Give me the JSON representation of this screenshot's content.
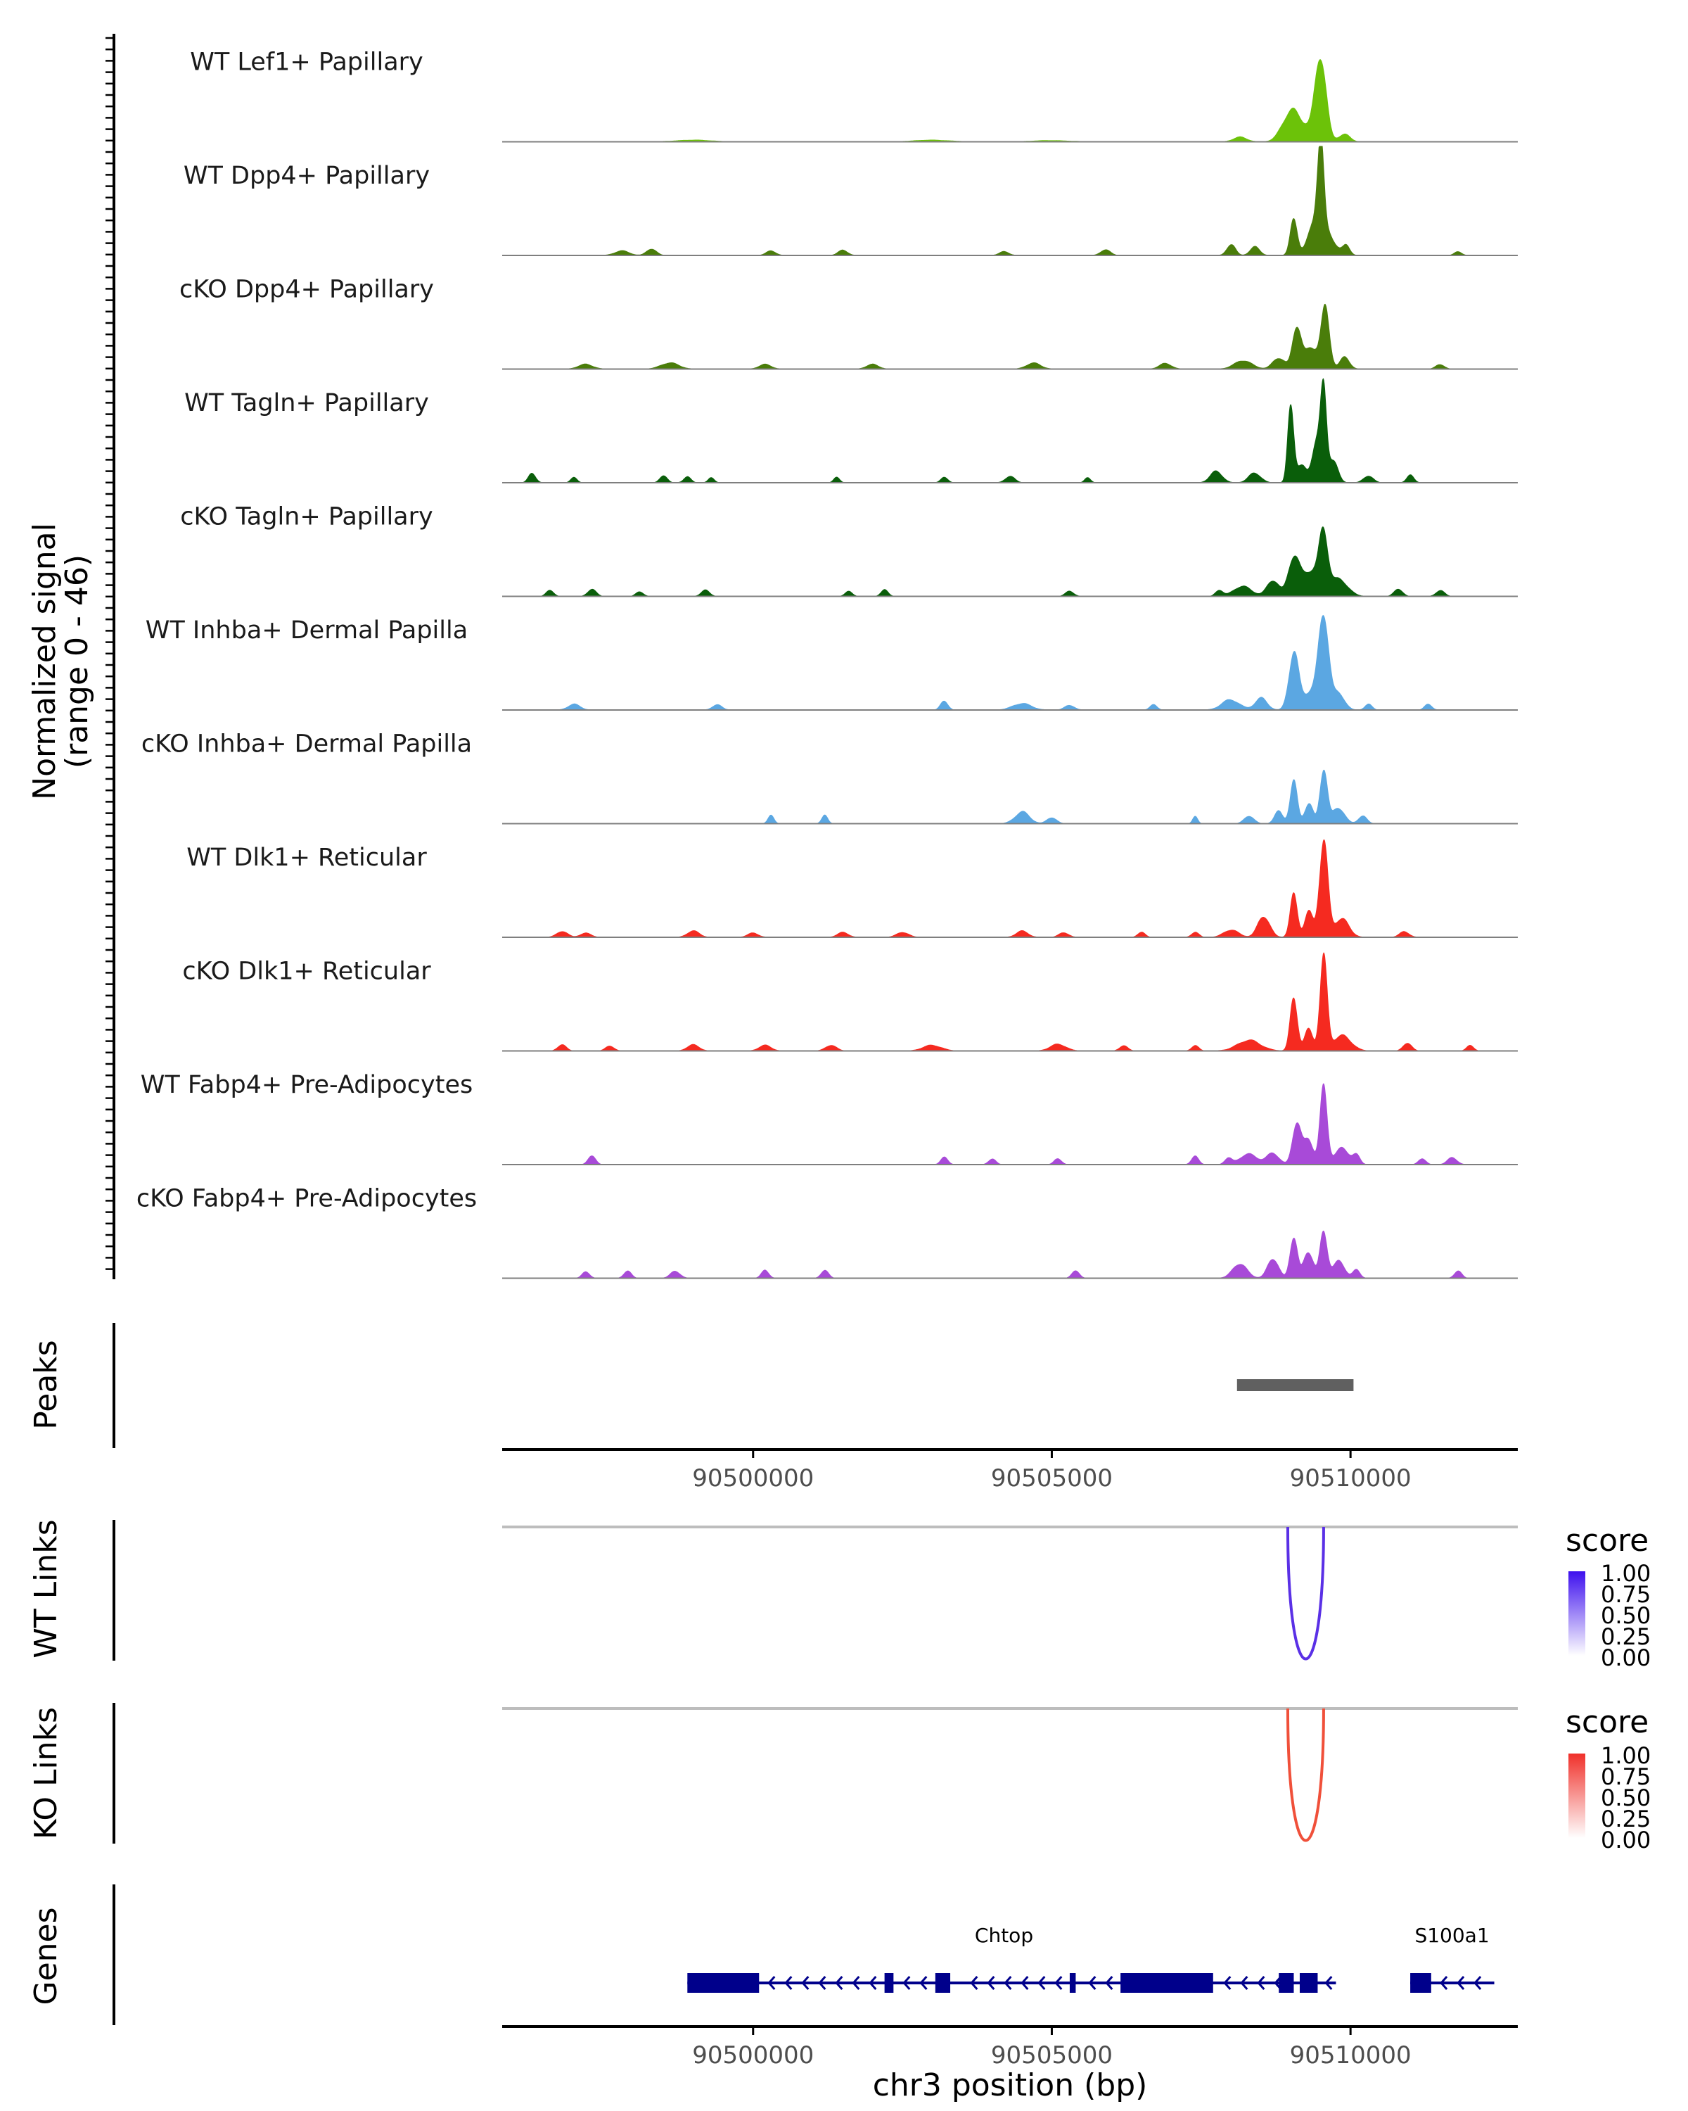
{
  "chart_data": {
    "type": "area",
    "region": "chr3",
    "x_range": [
      90495800,
      90512800
    ],
    "y_axis_label": "Normalized signal",
    "y_axis_range_label": "(range 0 - 46)",
    "y_range": [
      0,
      46
    ],
    "tracks": [
      {
        "name": "WT Lef1+ Papillary",
        "color": "#6cc209",
        "base": 1.2,
        "peaks": [
          [
            90508150,
            110,
            2.5
          ],
          [
            90509000,
            140,
            14
          ],
          [
            90509500,
            90,
            38
          ],
          [
            90509250,
            200,
            6
          ],
          [
            90509900,
            90,
            4
          ],
          [
            90499000,
            300,
            0.8
          ],
          [
            90503000,
            300,
            0.8
          ],
          [
            90505000,
            300,
            0.6
          ]
        ]
      },
      {
        "name": "WT Dpp4+ Papillary",
        "color": "#4a7d0a",
        "base": 1.5,
        "peaks": [
          [
            90497800,
            120,
            2.2
          ],
          [
            90498300,
            80,
            3.5
          ],
          [
            90500300,
            80,
            2.4
          ],
          [
            90501500,
            80,
            2.6
          ],
          [
            90504200,
            80,
            2
          ],
          [
            90505900,
            80,
            3
          ],
          [
            90508000,
            70,
            6
          ],
          [
            90508400,
            80,
            4
          ],
          [
            90509050,
            60,
            18
          ],
          [
            90509500,
            50,
            44
          ],
          [
            90509400,
            120,
            12
          ],
          [
            90509600,
            150,
            10
          ],
          [
            90509930,
            60,
            4.5
          ],
          [
            90511800,
            60,
            2
          ]
        ]
      },
      {
        "name": "cKO Dpp4+ Papillary",
        "color": "#4a7d0a",
        "base": 1.8,
        "peaks": [
          [
            90497200,
            120,
            2.5
          ],
          [
            90498600,
            150,
            3
          ],
          [
            90500200,
            100,
            2.5
          ],
          [
            90502000,
            100,
            2.5
          ],
          [
            90504700,
            120,
            3
          ],
          [
            90506900,
            100,
            3
          ],
          [
            90508200,
            150,
            4
          ],
          [
            90508800,
            100,
            6
          ],
          [
            90509100,
            70,
            20
          ],
          [
            90509350,
            120,
            10
          ],
          [
            90509580,
            70,
            30
          ],
          [
            90509900,
            80,
            6
          ],
          [
            90511500,
            70,
            2.5
          ]
        ]
      },
      {
        "name": "WT Tagln+ Papillary",
        "color": "#0a5e0a",
        "base": 0.9,
        "peaks": [
          [
            90496300,
            60,
            5
          ],
          [
            90497000,
            50,
            3
          ],
          [
            90498500,
            60,
            3.5
          ],
          [
            90498900,
            60,
            3
          ],
          [
            90499300,
            50,
            2.5
          ],
          [
            90501400,
            50,
            2.5
          ],
          [
            90503200,
            60,
            2.5
          ],
          [
            90504300,
            80,
            3
          ],
          [
            90505600,
            50,
            2.5
          ],
          [
            90507750,
            100,
            6
          ],
          [
            90508400,
            100,
            5
          ],
          [
            90509000,
            50,
            36
          ],
          [
            90509180,
            90,
            8
          ],
          [
            90509550,
            50,
            45
          ],
          [
            90509430,
            70,
            22
          ],
          [
            90509700,
            80,
            12
          ],
          [
            90510300,
            80,
            3.5
          ],
          [
            90511000,
            60,
            3.5
          ]
        ]
      },
      {
        "name": "cKO Tagln+ Papillary",
        "color": "#0a5e0a",
        "base": 1.3,
        "peaks": [
          [
            90496600,
            60,
            3
          ],
          [
            90497300,
            70,
            3.5
          ],
          [
            90498100,
            60,
            2.5
          ],
          [
            90499200,
            70,
            3
          ],
          [
            90501600,
            60,
            2.5
          ],
          [
            90502200,
            60,
            3
          ],
          [
            90505300,
            70,
            2.5
          ],
          [
            90507800,
            60,
            3
          ],
          [
            90508200,
            150,
            5
          ],
          [
            90508700,
            100,
            8
          ],
          [
            90509050,
            90,
            18
          ],
          [
            90509350,
            150,
            14
          ],
          [
            90509550,
            70,
            28
          ],
          [
            90509800,
            150,
            8
          ],
          [
            90510800,
            70,
            3.5
          ],
          [
            90511500,
            70,
            3
          ]
        ]
      },
      {
        "name": "WT Inhba+ Dermal Papilla",
        "color": "#5ba7e2",
        "base": 1.5,
        "peaks": [
          [
            90497000,
            100,
            3
          ],
          [
            90499400,
            80,
            2.5
          ],
          [
            90503200,
            60,
            4.5
          ],
          [
            90504500,
            150,
            3.5
          ],
          [
            90505300,
            80,
            2.5
          ],
          [
            90506700,
            60,
            2.5
          ],
          [
            90508000,
            150,
            5
          ],
          [
            90508500,
            100,
            6
          ],
          [
            90509050,
            80,
            28
          ],
          [
            90509350,
            150,
            10
          ],
          [
            90509550,
            80,
            44
          ],
          [
            90509800,
            100,
            8
          ],
          [
            90510300,
            60,
            3
          ],
          [
            90511300,
            60,
            3
          ]
        ]
      },
      {
        "name": "cKO Inhba+ Dermal Papilla",
        "color": "#5ba7e2",
        "base": 0.8,
        "peaks": [
          [
            90500300,
            50,
            4
          ],
          [
            90501200,
            50,
            4
          ],
          [
            90504500,
            120,
            6
          ],
          [
            90505000,
            80,
            3
          ],
          [
            90507400,
            40,
            4
          ],
          [
            90508300,
            80,
            4
          ],
          [
            90508800,
            70,
            6
          ],
          [
            90509050,
            60,
            22
          ],
          [
            90509300,
            70,
            10
          ],
          [
            90509550,
            60,
            26
          ],
          [
            90509800,
            100,
            8
          ],
          [
            90510200,
            70,
            4
          ]
        ]
      },
      {
        "name": "WT Dlk1+ Reticular",
        "color": "#f52a20",
        "base": 1.4,
        "peaks": [
          [
            90496800,
            90,
            3
          ],
          [
            90497200,
            90,
            2
          ],
          [
            90499000,
            100,
            3
          ],
          [
            90500000,
            90,
            2
          ],
          [
            90501500,
            90,
            2.5
          ],
          [
            90502500,
            100,
            2.5
          ],
          [
            90504500,
            100,
            3
          ],
          [
            90505200,
            80,
            2.5
          ],
          [
            90506500,
            60,
            2.5
          ],
          [
            90507400,
            60,
            2.5
          ],
          [
            90508000,
            120,
            4
          ],
          [
            90508550,
            100,
            10
          ],
          [
            90509050,
            60,
            22
          ],
          [
            90509300,
            70,
            12
          ],
          [
            90509550,
            70,
            46
          ],
          [
            90509850,
            120,
            10
          ],
          [
            90510900,
            80,
            3
          ]
        ]
      },
      {
        "name": "cKO Dlk1+ Reticular",
        "color": "#f52a20",
        "base": 2,
        "peaks": [
          [
            90496800,
            70,
            3
          ],
          [
            90497600,
            70,
            2.5
          ],
          [
            90499000,
            100,
            3
          ],
          [
            90500200,
            100,
            3
          ],
          [
            90501300,
            90,
            3
          ],
          [
            90503000,
            150,
            3
          ],
          [
            90505100,
            130,
            3.5
          ],
          [
            90506200,
            70,
            2.5
          ],
          [
            90507400,
            60,
            2.5
          ],
          [
            90508300,
            200,
            5
          ],
          [
            90509050,
            60,
            26
          ],
          [
            90509300,
            70,
            10
          ],
          [
            90509550,
            60,
            46
          ],
          [
            90509850,
            150,
            8
          ],
          [
            90510950,
            70,
            4
          ],
          [
            90512000,
            60,
            2.5
          ]
        ]
      },
      {
        "name": "WT Fabp4+ Pre-Adipocytes",
        "color": "#a84ad8",
        "base": 0.8,
        "peaks": [
          [
            90497300,
            60,
            5
          ],
          [
            90503200,
            60,
            3.5
          ],
          [
            90504000,
            60,
            3
          ],
          [
            90505100,
            60,
            3
          ],
          [
            90507400,
            60,
            4
          ],
          [
            90507950,
            60,
            3
          ],
          [
            90508300,
            150,
            5
          ],
          [
            90508700,
            100,
            6
          ],
          [
            90509100,
            70,
            20
          ],
          [
            90509300,
            80,
            12
          ],
          [
            90509550,
            60,
            40
          ],
          [
            90509850,
            120,
            8
          ],
          [
            90510100,
            60,
            4
          ],
          [
            90511200,
            60,
            3
          ],
          [
            90511700,
            80,
            3.5
          ]
        ]
      },
      {
        "name": "cKO Fabp4+ Pre-Adipocytes",
        "color": "#a84ad8",
        "base": 0.6,
        "peaks": [
          [
            90497200,
            60,
            3.5
          ],
          [
            90497900,
            60,
            4
          ],
          [
            90498700,
            80,
            3.5
          ],
          [
            90500200,
            60,
            4
          ],
          [
            90501200,
            60,
            4
          ],
          [
            90505400,
            60,
            4
          ],
          [
            90508150,
            120,
            7
          ],
          [
            90508700,
            90,
            10
          ],
          [
            90509050,
            60,
            20
          ],
          [
            90509300,
            80,
            14
          ],
          [
            90509550,
            60,
            24
          ],
          [
            90509800,
            100,
            8
          ],
          [
            90510100,
            60,
            4
          ],
          [
            90511800,
            60,
            3.5
          ]
        ]
      }
    ],
    "peaks_track": {
      "label": "Peaks",
      "regions": [
        [
          90508100,
          90510050
        ]
      ],
      "color": "#606060"
    },
    "x_ticks": [
      90500000,
      90505000,
      90510000
    ],
    "x_tick_labels": [
      "90500000",
      "90505000",
      "90510000"
    ],
    "links": [
      {
        "label": "WT Links",
        "from": 90508950,
        "to": 90509550,
        "score": 1.0,
        "color": "#5a30e6",
        "legend_title": "score",
        "legend_colors": [
          "#ffffff",
          "#3e10ee"
        ],
        "legend_ticks": [
          "1.00",
          "0.75",
          "0.50",
          "0.25",
          "0.00"
        ]
      },
      {
        "label": "KO Links",
        "from": 90508950,
        "to": 90509550,
        "score": 1.0,
        "color": "#f0503a",
        "legend_title": "score",
        "legend_colors": [
          "#ffffff",
          "#f0302a"
        ],
        "legend_ticks": [
          "1.00",
          "0.75",
          "0.50",
          "0.25",
          "0.00"
        ]
      }
    ],
    "genes_track": {
      "label": "Genes",
      "genes": [
        {
          "name": "Chtop",
          "start": 90498900,
          "end": 90509450,
          "strand": "-",
          "exons": [
            [
              90498900,
              90500100
            ],
            [
              90502200,
              90502350
            ],
            [
              90503050,
              90503300
            ],
            [
              90505300,
              90505400
            ],
            [
              90506150,
              90507700
            ],
            [
              90508800,
              90509050
            ],
            [
              90509150,
              90509450
            ]
          ]
        },
        {
          "name": "S100a1",
          "start": 90511000,
          "end": 90512100,
          "strand": "-",
          "exons": [
            [
              90511000,
              90511350
            ]
          ]
        }
      ]
    },
    "xlabel": "chr3 position (bp)"
  }
}
